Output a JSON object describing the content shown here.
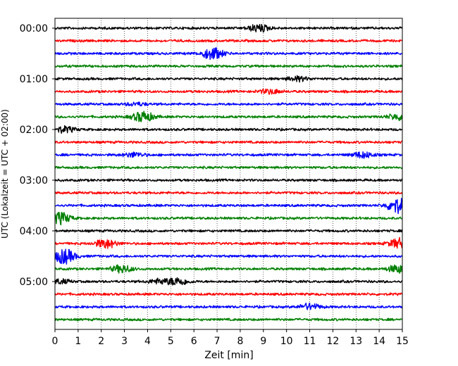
{
  "chart_data": {
    "type": "line",
    "title": "",
    "xlabel": "Zeit  [min]",
    "ylabel": "UTC (Lokalzeit = UTC + 02:00)",
    "xlim": [
      0,
      15
    ],
    "x_ticks": [
      "0",
      "1",
      "2",
      "3",
      "4",
      "5",
      "6",
      "7",
      "8",
      "9",
      "10",
      "11",
      "12",
      "13",
      "14",
      "15"
    ],
    "y_tick_labels": [
      "00:00",
      "01:00",
      "02:00",
      "03:00",
      "04:00",
      "05:00"
    ],
    "rows_per_hour": 4,
    "minutes_per_row": 15,
    "grid": "vertical dotted every minute",
    "colors": [
      "#000000",
      "#ff0000",
      "#0000ff",
      "#008000"
    ],
    "series": [
      {
        "name": "00:00",
        "bursts": [
          {
            "t": 8.8,
            "a": 5
          }
        ]
      },
      {
        "name": "00:15",
        "bursts": []
      },
      {
        "name": "00:30",
        "bursts": [
          {
            "t": 6.8,
            "a": 8
          }
        ]
      },
      {
        "name": "00:45",
        "bursts": []
      },
      {
        "name": "01:00",
        "bursts": [
          {
            "t": 10.5,
            "a": 3
          }
        ]
      },
      {
        "name": "01:15",
        "bursts": [
          {
            "t": 9.3,
            "a": 3
          }
        ]
      },
      {
        "name": "01:30",
        "bursts": [
          {
            "t": 3.5,
            "a": 2
          }
        ]
      },
      {
        "name": "01:45",
        "bursts": [
          {
            "t": 3.8,
            "a": 7
          },
          {
            "t": 14.8,
            "a": 4
          }
        ]
      },
      {
        "name": "02:00",
        "bursts": [
          {
            "t": 0.4,
            "a": 4
          }
        ]
      },
      {
        "name": "02:15",
        "bursts": []
      },
      {
        "name": "02:30",
        "bursts": [
          {
            "t": 3.4,
            "a": 3
          },
          {
            "t": 13.3,
            "a": 4
          }
        ]
      },
      {
        "name": "02:45",
        "bursts": []
      },
      {
        "name": "03:00",
        "bursts": []
      },
      {
        "name": "03:15",
        "bursts": []
      },
      {
        "name": "03:30",
        "bursts": [
          {
            "t": 14.8,
            "a": 10
          }
        ]
      },
      {
        "name": "03:45",
        "bursts": [
          {
            "t": 0.2,
            "a": 8
          }
        ]
      },
      {
        "name": "04:00",
        "bursts": []
      },
      {
        "name": "04:15",
        "bursts": [
          {
            "t": 2.2,
            "a": 6
          },
          {
            "t": 14.9,
            "a": 7
          }
        ]
      },
      {
        "name": "04:30",
        "bursts": [
          {
            "t": 0.4,
            "a": 10
          }
        ]
      },
      {
        "name": "04:45",
        "bursts": [
          {
            "t": 2.9,
            "a": 5
          },
          {
            "t": 14.8,
            "a": 5
          }
        ]
      },
      {
        "name": "05:00",
        "bursts": [
          {
            "t": 5.3,
            "a": 5
          },
          {
            "t": 4.5,
            "a": 3
          },
          {
            "t": 0.2,
            "a": 3
          }
        ]
      },
      {
        "name": "05:15",
        "bursts": []
      },
      {
        "name": "05:30",
        "bursts": [
          {
            "t": 11.0,
            "a": 4
          }
        ]
      },
      {
        "name": "05:45",
        "bursts": []
      }
    ]
  }
}
